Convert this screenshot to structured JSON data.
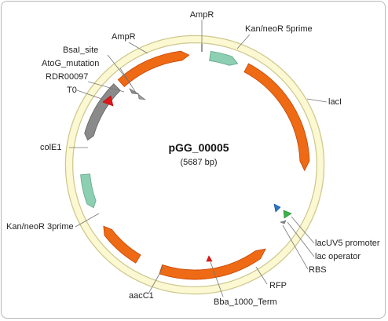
{
  "plasmid": {
    "name": "pGG_00005",
    "size_label": "(5687 bp)"
  },
  "colors": {
    "orange": "#ee6a14",
    "teal": "#8ccfb2",
    "gray": "#8a8a8a",
    "red": "#e01818",
    "green": "#3db04a",
    "blue": "#2f74c4",
    "backbone_fill": "#fbf8d2",
    "backbone_stroke": "#cdc88e"
  },
  "features": [
    {
      "id": "kan-5",
      "label": "Kan/neoR 5prime",
      "color": "teal"
    },
    {
      "id": "laci",
      "label": "lacI",
      "color": "orange"
    },
    {
      "id": "lacuv5",
      "label": "lacUV5 promoter",
      "color": "blue"
    },
    {
      "id": "lacop",
      "label": "lac operator",
      "color": "green"
    },
    {
      "id": "rbs",
      "label": "RBS",
      "color": "gray"
    },
    {
      "id": "rfp",
      "label": "RFP",
      "color": "orange"
    },
    {
      "id": "bba",
      "label": "Bba_1000_Term",
      "color": "red"
    },
    {
      "id": "aacc1",
      "label": "aacC1",
      "color": "orange"
    },
    {
      "id": "kan-3",
      "label": "Kan/neoR 3prime",
      "color": "teal"
    },
    {
      "id": "cole1",
      "label": "colE1",
      "color": "gray"
    },
    {
      "id": "t0",
      "label": "T0",
      "color": "red"
    },
    {
      "id": "rdr",
      "label": "RDR00097",
      "color": "gray"
    },
    {
      "id": "atog",
      "label": "AtoG_mutation",
      "color": "gray"
    },
    {
      "id": "bsai",
      "label": "BsaI_site",
      "color": "gray"
    },
    {
      "id": "ampr",
      "label": "AmpR",
      "color": "orange"
    },
    {
      "id": "ampr-top",
      "label": "AmpR",
      "color": "orange"
    }
  ]
}
